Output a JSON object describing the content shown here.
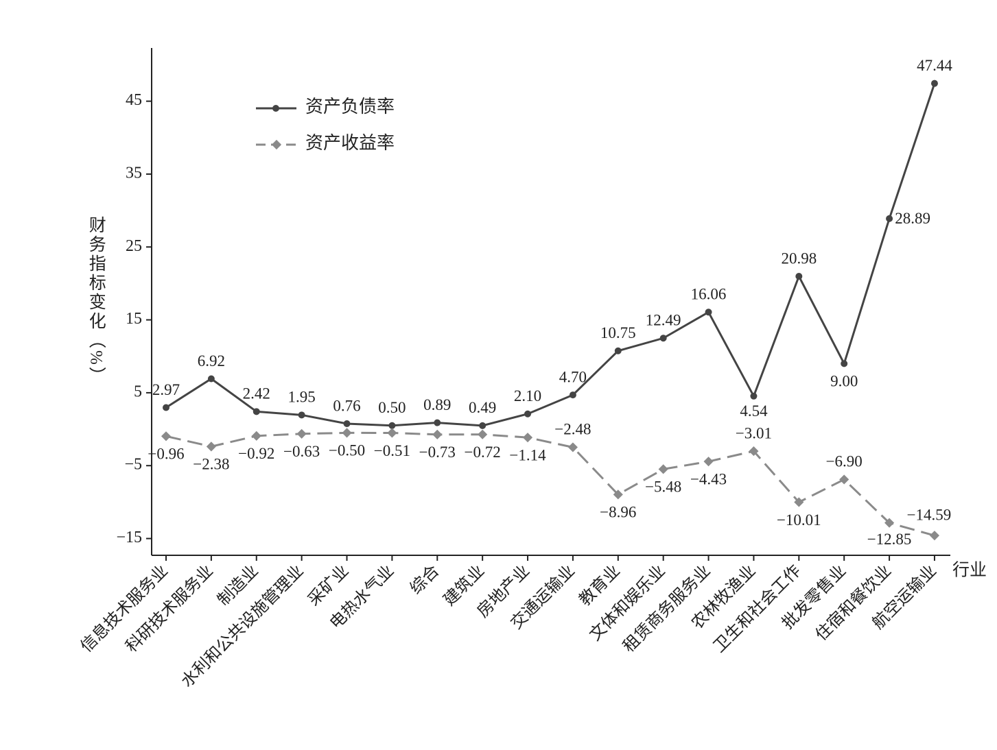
{
  "chart_data": {
    "type": "line",
    "y_label": "财务指标变化（%）",
    "x_label": "行业",
    "categories": [
      "信息技术服务业",
      "科研技术服务业",
      "制造业",
      "水利和公共设施管理业",
      "采矿业",
      "电热水气业",
      "综合",
      "建筑业",
      "房地产业",
      "交通运输业",
      "教育业",
      "文体和娱乐业",
      "租赁商务服务业",
      "农林牧渔业",
      "卫生和社会工作",
      "批发零售业",
      "住宿和餐饮业",
      "航空运输业"
    ],
    "series": [
      {
        "name": "资产负债率",
        "color": "#444444",
        "dash": false,
        "values": [
          2.97,
          6.92,
          2.42,
          1.95,
          0.76,
          0.5,
          0.89,
          0.49,
          2.1,
          4.7,
          10.75,
          12.49,
          16.06,
          4.54,
          20.98,
          9,
          28.89,
          47.44
        ],
        "value_labels": [
          "2.97",
          "6.92",
          "2.42",
          "1.95",
          "0.76",
          "0.50",
          "0.89",
          "0.49",
          "2.10",
          "4.70",
          "10.75",
          "12.49",
          "16.06",
          "4.54",
          "20.98",
          "9.00",
          "28.89",
          "47.44"
        ]
      },
      {
        "name": "资产收益率",
        "color": "#8a8a8a",
        "dash": true,
        "values": [
          -0.96,
          -2.38,
          -0.92,
          -0.63,
          -0.5,
          -0.51,
          -0.73,
          -0.72,
          -1.14,
          -2.48,
          -8.96,
          -5.48,
          -4.43,
          -3.01,
          -10.01,
          -6.9,
          -12.85,
          -14.59
        ],
        "value_labels": [
          "−0.96",
          "−2.38",
          "−0.92",
          "−0.63",
          "−0.50",
          "−0.51",
          "−0.73",
          "−0.72",
          "−1.14",
          "−2.48",
          "−8.96",
          "−5.48",
          "−4.43",
          "−3.01",
          "−10.01",
          "−6.90",
          "−12.85",
          "−14.59"
        ]
      }
    ],
    "ylim": [
      -17.3,
      52.3
    ],
    "yticks": [
      {
        "value": -15,
        "label": "−15"
      },
      {
        "value": -5,
        "label": "−5"
      },
      5,
      15,
      25,
      35,
      45
    ],
    "grid": false
  }
}
